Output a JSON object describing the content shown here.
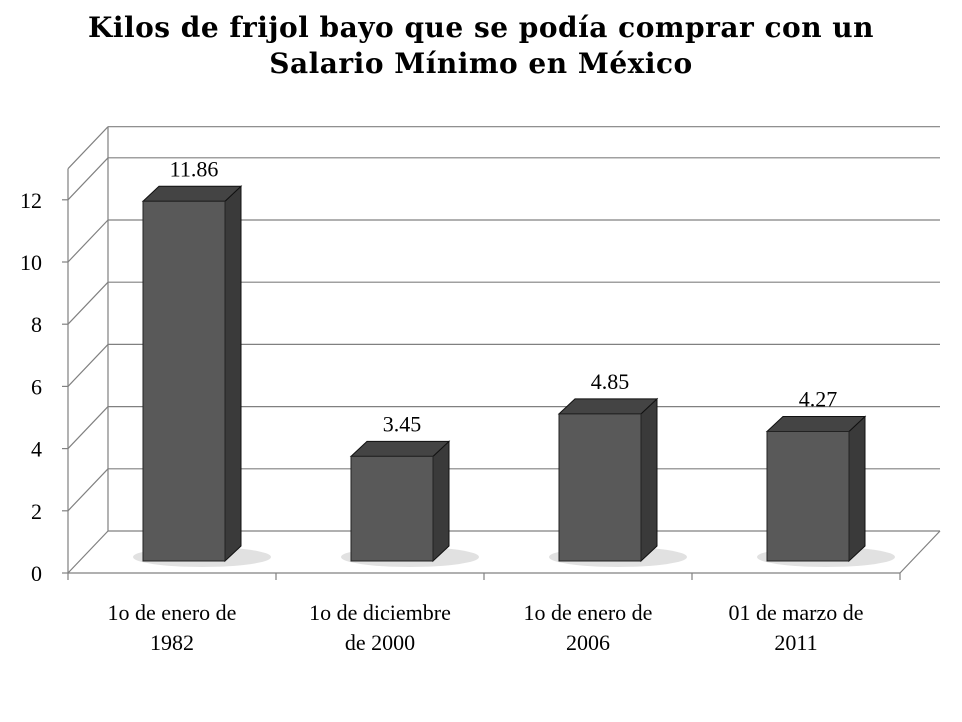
{
  "chart_data": {
    "type": "bar",
    "title_lines": [
      "Kilos de frijol bayo que se podía comprar con un",
      "Salario Mínimo en México"
    ],
    "categories": [
      [
        "1o de enero de",
        "1982"
      ],
      [
        "1o de diciembre",
        "de 2000"
      ],
      [
        "1o de enero de",
        "2006"
      ],
      [
        "01 de marzo de",
        "2011"
      ]
    ],
    "values": [
      11.86,
      3.45,
      4.85,
      4.27
    ],
    "value_labels": [
      "11.86",
      "3.45",
      "4.85",
      "4.27"
    ],
    "yticks": [
      0,
      2,
      4,
      6,
      8,
      10,
      12
    ],
    "ylim": [
      0,
      13
    ],
    "grid": true,
    "colors": {
      "bar_front": "#595959",
      "bar_side": "#3a3a3a",
      "bar_top": "#444444",
      "grid": "#808080"
    }
  }
}
